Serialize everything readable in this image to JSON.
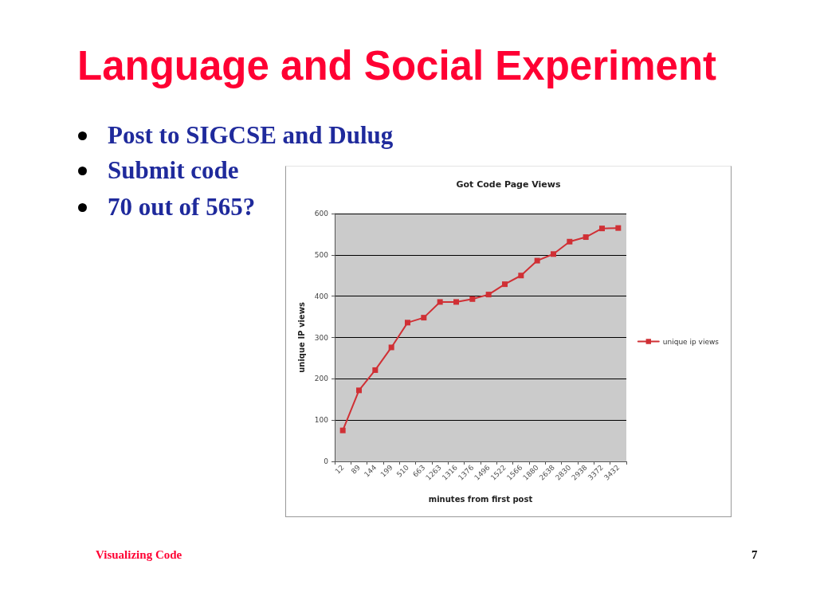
{
  "chart_data": {
    "type": "line",
    "title": "Got Code Page Views",
    "xlabel": "minutes from first post",
    "ylabel": "unique IP views",
    "categories": [
      "12",
      "89",
      "144",
      "199",
      "510",
      "663",
      "1263",
      "1316",
      "1376",
      "1496",
      "1522",
      "1566",
      "1880",
      "2638",
      "2830",
      "2938",
      "3372",
      "3432"
    ],
    "series": [
      {
        "name": "unique ip views",
        "color": "#d03035",
        "values": [
          75,
          172,
          221,
          276,
          336,
          348,
          386,
          386,
          393,
          404,
          429,
          450,
          486,
          502,
          532,
          543,
          564,
          565
        ]
      }
    ],
    "ylim": [
      0,
      600
    ],
    "yticks": [
      0,
      100,
      200,
      300,
      400,
      500,
      600
    ],
    "grid": "y",
    "legend": "right",
    "marker": "square",
    "annotations": [
      "Language and Social Experiment",
      "Post to SIGCSE and Dulug",
      "Submit code",
      "70 out of 565?",
      "Visualizing Code",
      "7"
    ]
  }
}
